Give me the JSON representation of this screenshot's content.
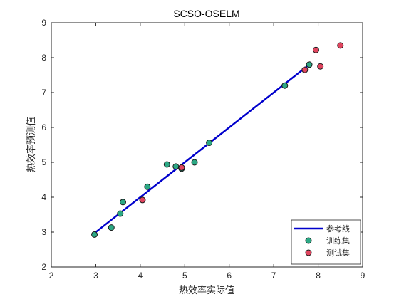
{
  "chart_data": {
    "type": "scatter",
    "title": "SCSO-OSELM",
    "xlabel": "热效率实际值",
    "ylabel": "热效率预测值",
    "xlim": [
      2,
      9
    ],
    "ylim": [
      2,
      9
    ],
    "xticks": [
      "2",
      "3",
      "4",
      "5",
      "6",
      "7",
      "8",
      "9"
    ],
    "yticks": [
      "2",
      "3",
      "4",
      "5",
      "6",
      "7",
      "8",
      "9"
    ],
    "grid": false,
    "legend_position": "bottom-right",
    "reference_line": {
      "name": "参考线",
      "color": "#0000cc",
      "x": [
        2.95,
        7.75
      ],
      "y": [
        2.95,
        7.75
      ]
    },
    "series": [
      {
        "name": "训练集",
        "color": "#2ca884",
        "x": [
          2.97,
          3.35,
          3.55,
          3.61,
          4.16,
          4.6,
          4.8,
          4.93,
          5.22,
          5.55,
          7.25,
          7.8
        ],
        "y": [
          2.93,
          3.13,
          3.53,
          3.86,
          4.3,
          4.94,
          4.88,
          4.82,
          5.0,
          5.56,
          7.2,
          7.8
        ]
      },
      {
        "name": "测试集",
        "color": "#e0455f",
        "x": [
          4.05,
          4.93,
          7.7,
          7.95,
          8.05,
          8.5
        ],
        "y": [
          3.92,
          4.85,
          7.65,
          8.22,
          7.75,
          8.35
        ]
      }
    ]
  }
}
